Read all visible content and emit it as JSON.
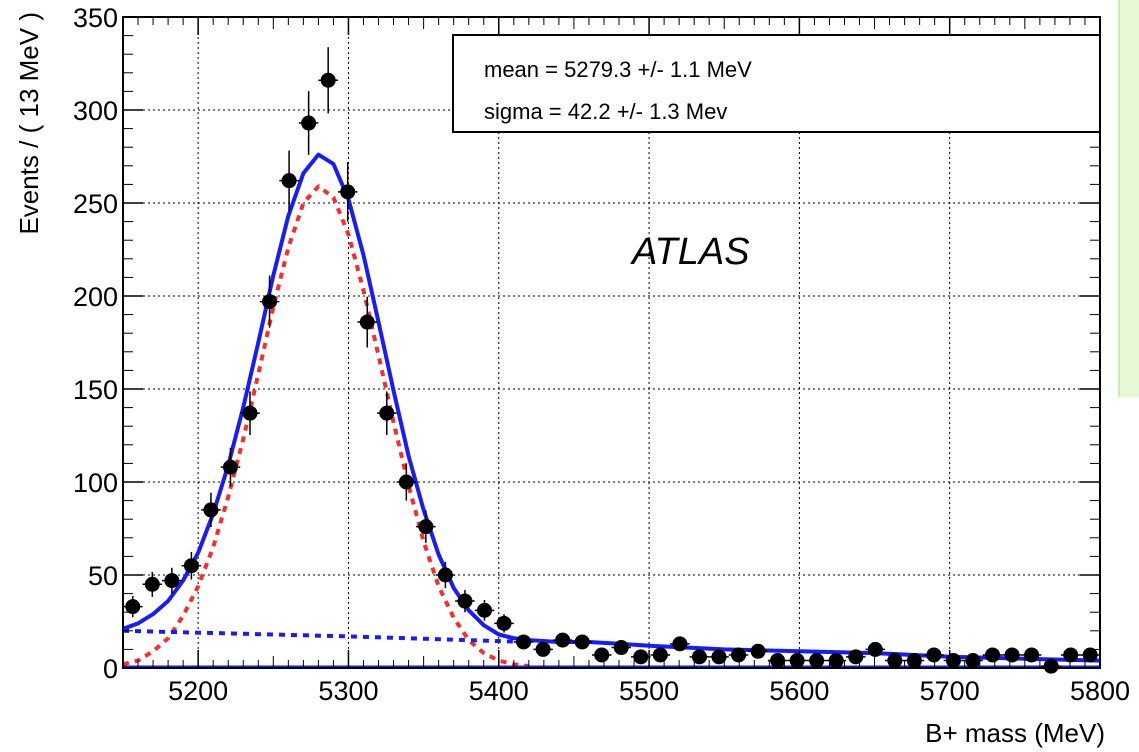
{
  "chart_data": {
    "type": "scatter",
    "title": "",
    "xlabel": "B+ mass (MeV)",
    "ylabel": "Events / ( 13 MeV )",
    "xlim": [
      5150,
      5800
    ],
    "ylim": [
      0,
      350
    ],
    "x_ticks": [
      "5200",
      "5300",
      "5400",
      "5500",
      "5600",
      "5700",
      "5800"
    ],
    "y_ticks": [
      "0",
      "50",
      "100",
      "150",
      "200",
      "250",
      "300",
      "350"
    ],
    "grid": true,
    "annotation": "ATLAS",
    "stats_box": {
      "mean": "mean =  5279.3 +/- 1.1 MeV",
      "sigma": "sigma =  42.2 +/- 1.3 Mev"
    },
    "series": [
      {
        "type": "points_with_errors",
        "color": "#000000",
        "x": [
          5156.5,
          5169.5,
          5182.5,
          5195.5,
          5208.5,
          5221.5,
          5234.5,
          5247.5,
          5260.5,
          5273.5,
          5286.5,
          5299.5,
          5312.5,
          5325.5,
          5338.5,
          5351.5,
          5364.5,
          5377.5,
          5390.5,
          5403.5,
          5416.5,
          5429.5,
          5442.5,
          5455.5,
          5468.5,
          5481.5,
          5494.5,
          5507.5,
          5520.5,
          5533.5,
          5546.5,
          5559.5,
          5572.5,
          5585.5,
          5598.5,
          5611.5,
          5624.5,
          5637.5,
          5650.5,
          5663.5,
          5676.5,
          5689.5,
          5702.5,
          5715.5,
          5728.5,
          5741.5,
          5754.5,
          5767.5,
          5780.5,
          5793.5
        ],
        "y": [
          33,
          45,
          47,
          55,
          85,
          108,
          137,
          197,
          262,
          293,
          316,
          256,
          186,
          137,
          100,
          76,
          50,
          36,
          31,
          24,
          14,
          10,
          15,
          14,
          7,
          11,
          6,
          7,
          13,
          6,
          6,
          7,
          9,
          4,
          4,
          4,
          4,
          6,
          10,
          4,
          4,
          7,
          4,
          4,
          7,
          7,
          7,
          1,
          7,
          7
        ]
      },
      {
        "name": "",
        "type": "line",
        "style": "solid",
        "color": "#1a1aff",
        "x": [
          5150,
          5160,
          5170,
          5180,
          5190,
          5200,
          5210,
          5220,
          5230,
          5240,
          5250,
          5260,
          5270,
          5280,
          5290,
          5300,
          5310,
          5320,
          5330,
          5340,
          5350,
          5360,
          5370,
          5380,
          5390,
          5400,
          5410,
          5420,
          5440,
          5460,
          5480,
          5500,
          5550,
          5600,
          5650,
          5700,
          5750,
          5800
        ],
        "y": [
          21,
          24,
          29,
          36,
          47,
          62,
          83,
          109,
          140,
          175,
          211,
          243,
          266,
          276,
          271,
          252,
          222,
          186,
          149,
          114,
          85,
          61,
          43,
          31,
          23,
          18,
          16,
          15,
          14,
          14,
          13,
          12,
          10,
          9,
          8,
          6,
          5,
          4
        ]
      },
      {
        "name": "",
        "type": "line",
        "style": "dashed",
        "color": "#ff2a2a",
        "x": [
          5150,
          5160,
          5170,
          5180,
          5190,
          5200,
          5210,
          5220,
          5230,
          5240,
          5250,
          5260,
          5270,
          5280,
          5290,
          5300,
          5310,
          5320,
          5330,
          5340,
          5350,
          5360,
          5370,
          5380,
          5390,
          5400,
          5410,
          5420
        ],
        "y": [
          2,
          4,
          9,
          16,
          28,
          44,
          65,
          92,
          123,
          158,
          194,
          226,
          250,
          259,
          253,
          233,
          203,
          168,
          132,
          98,
          68,
          44,
          27,
          15,
          8,
          4,
          2,
          1
        ]
      },
      {
        "name": "",
        "type": "line",
        "style": "dashed",
        "color": "#1a1aff",
        "x": [
          5150,
          5300,
          5420
        ],
        "y": [
          20,
          17,
          14
        ]
      }
    ]
  }
}
